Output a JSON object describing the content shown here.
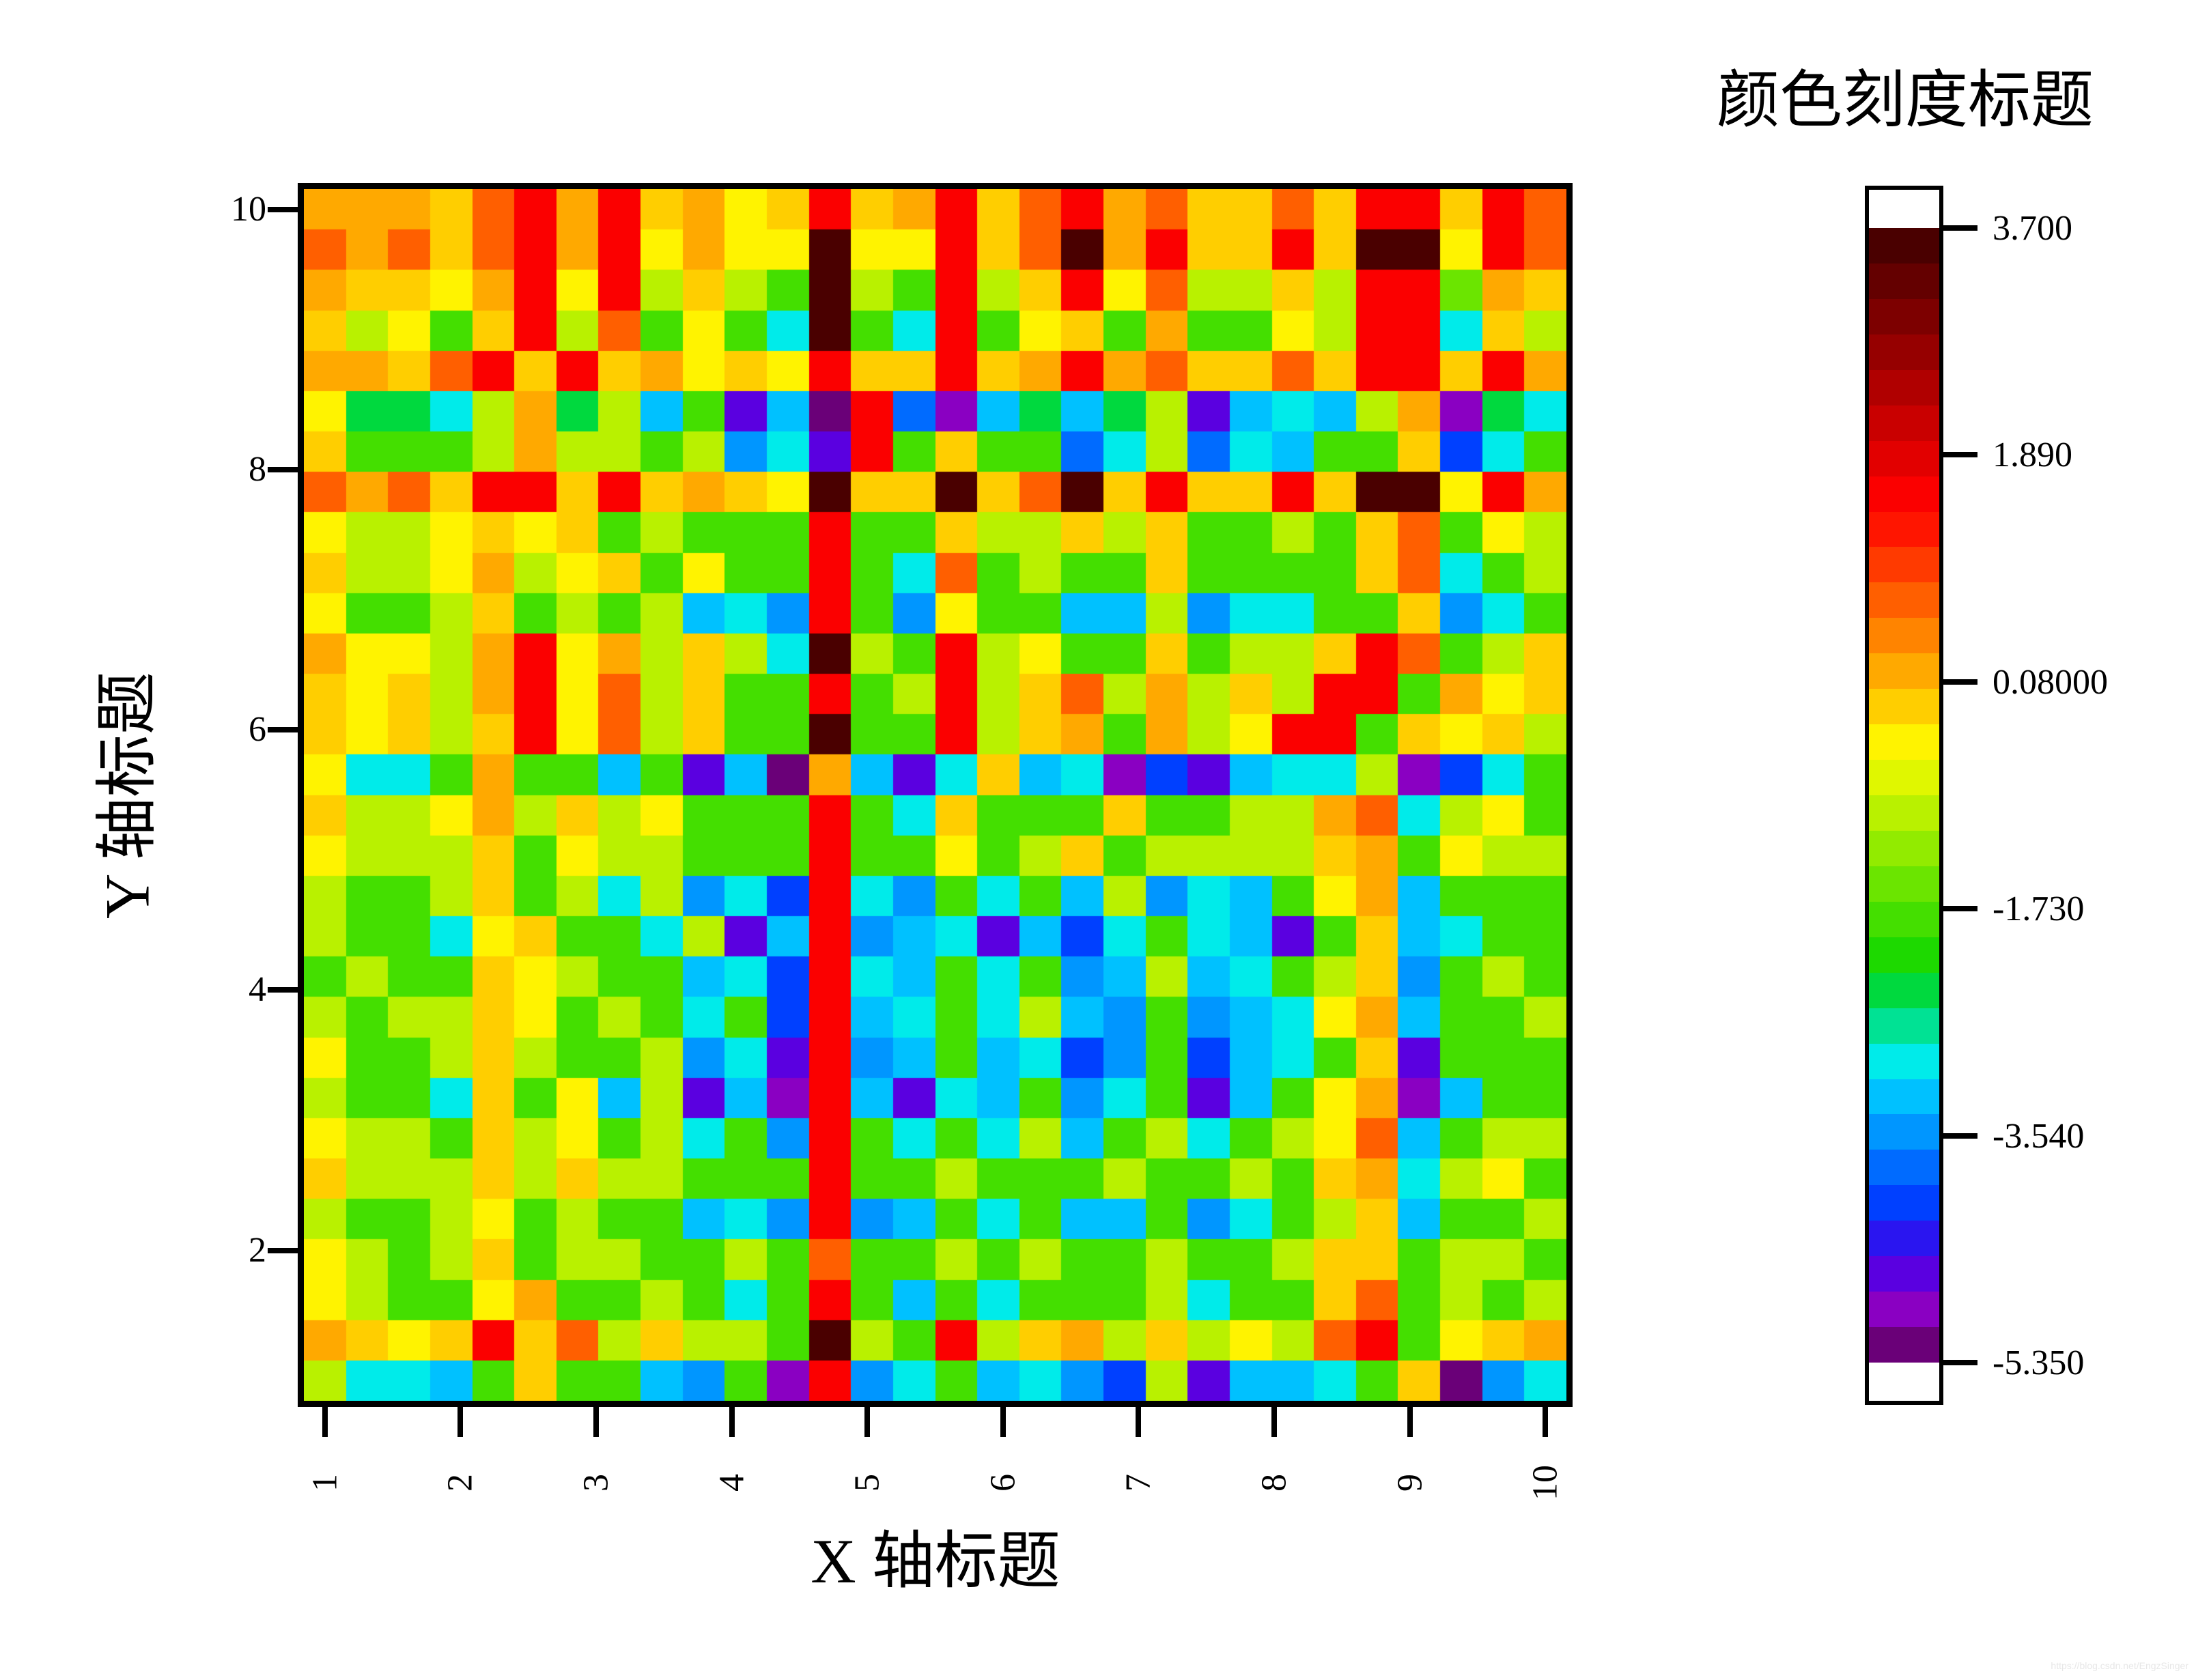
{
  "page": {
    "background": "#ffffff",
    "watermark": "https://blog.csdn.net/EngzSinger"
  },
  "chart_data": {
    "type": "heatmap",
    "title": "",
    "xlabel": "X 轴标题",
    "ylabel": "Y 轴标题",
    "colorbar_title": "颜色刻度标题",
    "x_range": [
      1,
      10
    ],
    "y_range": [
      1,
      10
    ],
    "x_ticks": [
      {
        "value": 1,
        "label": "1"
      },
      {
        "value": 2,
        "label": "2"
      },
      {
        "value": 3,
        "label": "3"
      },
      {
        "value": 4,
        "label": "4"
      },
      {
        "value": 5,
        "label": "5"
      },
      {
        "value": 6,
        "label": "6"
      },
      {
        "value": 7,
        "label": "7"
      },
      {
        "value": 8,
        "label": "8"
      },
      {
        "value": 9,
        "label": "9"
      },
      {
        "value": 10,
        "label": "10"
      }
    ],
    "y_ticks": [
      {
        "value": 10,
        "label": "10"
      },
      {
        "value": 8,
        "label": "8"
      },
      {
        "value": 6,
        "label": "6"
      },
      {
        "value": 4,
        "label": "4"
      },
      {
        "value": 2,
        "label": "2"
      }
    ],
    "grid": {
      "rows": 30,
      "cols": 30
    },
    "value_range": [
      -5.35,
      3.7
    ],
    "colorbar_ticks": [
      {
        "value": 3.7,
        "label": "3.700"
      },
      {
        "value": 1.89,
        "label": "1.890"
      },
      {
        "value": 0.08,
        "label": "0.08000"
      },
      {
        "value": -1.73,
        "label": "-1.730"
      },
      {
        "value": -3.54,
        "label": "-3.540"
      },
      {
        "value": -5.35,
        "label": "-5.350"
      }
    ],
    "colorbar_cap_color": "#ffffff",
    "colormap": [
      "#4a0000",
      "#640000",
      "#7d0000",
      "#960000",
      "#b00000",
      "#c90000",
      "#e20000",
      "#fb0000",
      "#ff1500",
      "#ff3a00",
      "#ff5f00",
      "#ff8400",
      "#ffa900",
      "#ffce00",
      "#fff300",
      "#e0f700",
      "#b9f100",
      "#92eb00",
      "#6be500",
      "#44df00",
      "#1dd900",
      "#00d93e",
      "#00e294",
      "#00ebea",
      "#00c1ff",
      "#0096ff",
      "#006bff",
      "#0040ff",
      "#2a15f0",
      "#5a00e0",
      "#8a00c2",
      "#6a0078"
    ],
    "values": [
      [
        0.25,
        0.25,
        0.25,
        -0.15,
        0.75,
        1.55,
        0.25,
        1.55,
        -0.15,
        0.25,
        -0.5,
        -0.15,
        1.55,
        -0.15,
        0.25,
        1.55,
        -0.15,
        0.75,
        1.55,
        0.25,
        0.75,
        -0.15,
        -0.15,
        0.75,
        -0.15,
        1.55,
        1.55,
        -0.15,
        1.55,
        0.75
      ],
      [
        0.75,
        0.25,
        0.75,
        -0.15,
        0.75,
        1.55,
        0.25,
        1.55,
        -0.5,
        0.25,
        -0.5,
        -0.5,
        3.45,
        -0.5,
        -0.5,
        1.55,
        -0.15,
        0.75,
        3.45,
        0.25,
        1.55,
        -0.15,
        -0.15,
        1.55,
        -0.15,
        3.45,
        3.45,
        -0.5,
        1.55,
        0.75
      ],
      [
        0.25,
        -0.15,
        -0.15,
        -0.5,
        0.25,
        1.55,
        -0.5,
        1.55,
        -1.05,
        -0.15,
        -1.05,
        -1.85,
        3.45,
        -1.05,
        -1.85,
        1.55,
        -1.05,
        -0.15,
        1.55,
        -0.5,
        0.75,
        -1.05,
        -1.05,
        -0.15,
        -1.05,
        1.55,
        1.55,
        -1.45,
        0.25,
        -0.15
      ],
      [
        -0.15,
        -1.05,
        -0.5,
        -1.85,
        -0.15,
        1.55,
        -1.05,
        0.75,
        -1.85,
        -0.5,
        -1.85,
        -2.95,
        3.45,
        -1.85,
        -2.95,
        1.55,
        -1.85,
        -0.5,
        -0.15,
        -1.85,
        0.25,
        -1.85,
        -1.85,
        -0.5,
        -1.05,
        1.55,
        1.55,
        -2.95,
        -0.15,
        -1.05
      ],
      [
        0.25,
        0.25,
        -0.15,
        0.75,
        1.55,
        -0.15,
        1.55,
        -0.15,
        0.25,
        -0.5,
        -0.15,
        -0.5,
        1.55,
        -0.15,
        -0.15,
        1.55,
        -0.15,
        0.25,
        1.55,
        0.25,
        0.75,
        -0.15,
        -0.15,
        0.75,
        -0.15,
        1.55,
        1.55,
        -0.15,
        1.55,
        0.25
      ],
      [
        -0.5,
        -2.25,
        -2.25,
        -2.95,
        -1.05,
        0.25,
        -2.25,
        -1.05,
        -3.25,
        -1.85,
        -4.6,
        -3.25,
        -5.3,
        1.55,
        -3.85,
        -4.95,
        -3.25,
        -2.25,
        -3.25,
        -2.25,
        -1.05,
        -4.6,
        -3.25,
        -2.95,
        -3.25,
        -1.05,
        0.25,
        -4.95,
        -2.25,
        -2.95
      ],
      [
        -0.15,
        -1.85,
        -1.85,
        -1.85,
        -1.05,
        0.25,
        -1.05,
        -1.05,
        -1.85,
        -1.05,
        -3.55,
        -2.95,
        -4.6,
        1.55,
        -1.85,
        -0.15,
        -1.85,
        -1.85,
        -3.85,
        -2.95,
        -1.05,
        -3.85,
        -2.95,
        -3.25,
        -1.85,
        -1.85,
        -0.15,
        -4.15,
        -2.95,
        -1.85
      ],
      [
        0.75,
        0.25,
        0.75,
        -0.15,
        1.55,
        1.55,
        -0.15,
        1.55,
        -0.15,
        0.25,
        -0.15,
        -0.5,
        3.45,
        -0.15,
        -0.15,
        3.45,
        -0.15,
        0.75,
        3.45,
        -0.15,
        1.55,
        -0.15,
        -0.15,
        1.55,
        -0.15,
        3.45,
        3.45,
        -0.5,
        1.55,
        0.25
      ],
      [
        -0.5,
        -1.05,
        -1.05,
        -0.5,
        -0.15,
        -0.5,
        -0.15,
        -1.85,
        -1.05,
        -1.85,
        -1.85,
        -1.85,
        1.55,
        -1.85,
        -1.85,
        -0.15,
        -1.05,
        -1.05,
        -0.15,
        -1.05,
        -0.15,
        -1.85,
        -1.85,
        -1.05,
        -1.85,
        -0.15,
        0.75,
        -1.85,
        -0.5,
        -1.05
      ],
      [
        -0.15,
        -1.05,
        -1.05,
        -0.5,
        0.25,
        -1.05,
        -0.5,
        -0.15,
        -1.85,
        -0.5,
        -1.85,
        -1.85,
        1.55,
        -1.85,
        -2.95,
        0.75,
        -1.85,
        -1.05,
        -1.85,
        -1.85,
        -0.15,
        -1.85,
        -1.85,
        -1.85,
        -1.85,
        -0.15,
        0.75,
        -2.95,
        -1.85,
        -1.05
      ],
      [
        -0.5,
        -1.85,
        -1.85,
        -1.05,
        -0.15,
        -1.85,
        -1.05,
        -1.85,
        -1.05,
        -3.25,
        -2.95,
        -3.55,
        1.55,
        -1.85,
        -3.55,
        -0.5,
        -1.85,
        -1.85,
        -3.25,
        -3.25,
        -1.05,
        -3.55,
        -2.95,
        -2.95,
        -1.85,
        -1.85,
        -0.15,
        -3.55,
        -2.95,
        -1.85
      ],
      [
        0.25,
        -0.5,
        -0.5,
        -1.05,
        0.25,
        1.55,
        -0.5,
        0.25,
        -1.05,
        -0.15,
        -1.05,
        -2.95,
        3.45,
        -1.05,
        -1.85,
        1.55,
        -1.05,
        -0.5,
        -1.85,
        -1.85,
        -0.15,
        -1.85,
        -1.05,
        -1.05,
        -0.15,
        1.55,
        0.75,
        -1.85,
        -1.05,
        -0.15
      ],
      [
        -0.15,
        -0.5,
        -0.15,
        -1.05,
        0.25,
        1.55,
        -0.5,
        0.75,
        -1.05,
        -0.15,
        -1.85,
        -1.85,
        1.55,
        -1.85,
        -1.05,
        1.55,
        -1.05,
        -0.15,
        0.75,
        -1.05,
        0.25,
        -1.05,
        -0.15,
        -1.05,
        1.55,
        1.55,
        -1.85,
        0.25,
        -0.5,
        -0.15
      ],
      [
        -0.15,
        -0.5,
        -0.15,
        -1.05,
        -0.15,
        1.55,
        -0.5,
        0.75,
        -1.05,
        -0.15,
        -1.85,
        -1.85,
        3.45,
        -1.85,
        -1.85,
        1.55,
        -1.05,
        -0.15,
        0.25,
        -1.85,
        0.25,
        -1.05,
        -0.5,
        1.55,
        1.55,
        -1.85,
        -0.15,
        -0.5,
        -0.15,
        -1.05
      ],
      [
        -0.5,
        -2.95,
        -2.95,
        -1.85,
        0.25,
        -1.85,
        -1.85,
        -3.25,
        -1.85,
        -4.6,
        -3.25,
        -5.3,
        0.25,
        -3.25,
        -4.6,
        -2.95,
        -0.15,
        -3.25,
        -2.95,
        -4.95,
        -4.15,
        -4.6,
        -3.25,
        -2.95,
        -2.95,
        -1.05,
        -4.95,
        -4.15,
        -2.95,
        -1.85
      ],
      [
        -0.15,
        -1.05,
        -1.05,
        -0.5,
        0.25,
        -1.05,
        -0.15,
        -1.05,
        -0.5,
        -1.85,
        -1.85,
        -1.85,
        1.55,
        -1.85,
        -2.95,
        -0.15,
        -1.85,
        -1.85,
        -1.85,
        -0.15,
        -1.85,
        -1.85,
        -1.05,
        -1.05,
        0.25,
        0.75,
        -2.95,
        -1.05,
        -0.5,
        -1.85
      ],
      [
        -0.5,
        -1.05,
        -1.05,
        -1.05,
        -0.15,
        -1.85,
        -0.5,
        -1.05,
        -1.05,
        -1.85,
        -1.85,
        -1.85,
        1.55,
        -1.85,
        -1.85,
        -0.5,
        -1.85,
        -1.05,
        -0.15,
        -1.85,
        -1.05,
        -1.05,
        -1.05,
        -1.05,
        -0.15,
        0.25,
        -1.85,
        -0.5,
        -1.05,
        -1.05
      ],
      [
        -1.05,
        -1.85,
        -1.85,
        -1.05,
        -0.15,
        -1.85,
        -1.05,
        -2.95,
        -1.05,
        -3.55,
        -2.95,
        -4.15,
        1.55,
        -2.95,
        -3.55,
        -1.85,
        -2.95,
        -1.85,
        -3.25,
        -1.05,
        -3.55,
        -2.95,
        -3.25,
        -1.85,
        -0.5,
        0.25,
        -3.25,
        -1.85,
        -1.85,
        -1.85
      ],
      [
        -1.05,
        -1.85,
        -1.85,
        -2.95,
        -0.5,
        -0.15,
        -1.85,
        -1.85,
        -2.95,
        -1.05,
        -4.6,
        -3.25,
        1.55,
        -3.55,
        -3.25,
        -2.95,
        -4.6,
        -3.25,
        -4.15,
        -2.95,
        -1.85,
        -2.95,
        -3.25,
        -4.6,
        -1.85,
        -0.15,
        -3.25,
        -2.95,
        -1.85,
        -1.85
      ],
      [
        -1.85,
        -1.05,
        -1.85,
        -1.85,
        -0.15,
        -0.5,
        -1.05,
        -1.85,
        -1.85,
        -3.25,
        -2.95,
        -4.15,
        1.55,
        -2.95,
        -3.25,
        -1.85,
        -2.95,
        -1.85,
        -3.55,
        -3.25,
        -1.05,
        -3.25,
        -2.95,
        -1.85,
        -1.05,
        -0.15,
        -3.55,
        -1.85,
        -1.05,
        -1.85
      ],
      [
        -1.05,
        -1.85,
        -1.05,
        -1.05,
        -0.15,
        -0.5,
        -1.85,
        -1.05,
        -1.85,
        -2.95,
        -1.85,
        -4.15,
        1.55,
        -3.25,
        -2.95,
        -1.85,
        -2.95,
        -1.05,
        -3.25,
        -3.55,
        -1.85,
        -3.55,
        -3.25,
        -2.95,
        -0.5,
        0.25,
        -3.25,
        -1.85,
        -1.85,
        -1.05
      ],
      [
        -0.5,
        -1.85,
        -1.85,
        -1.05,
        -0.15,
        -1.05,
        -1.85,
        -1.85,
        -1.05,
        -3.55,
        -2.95,
        -4.6,
        1.55,
        -3.55,
        -3.25,
        -1.85,
        -3.25,
        -2.95,
        -4.15,
        -3.55,
        -1.85,
        -4.15,
        -3.25,
        -2.95,
        -1.85,
        -0.15,
        -4.6,
        -1.85,
        -1.85,
        -1.85
      ],
      [
        -1.05,
        -1.85,
        -1.85,
        -2.95,
        -0.15,
        -1.85,
        -0.5,
        -3.25,
        -1.05,
        -4.6,
        -3.25,
        -4.95,
        1.55,
        -3.25,
        -4.6,
        -2.95,
        -3.25,
        -1.85,
        -3.55,
        -2.95,
        -1.85,
        -4.6,
        -3.25,
        -1.85,
        -0.5,
        0.25,
        -4.95,
        -3.25,
        -1.85,
        -1.85
      ],
      [
        -0.5,
        -1.05,
        -1.05,
        -1.85,
        -0.15,
        -1.05,
        -0.5,
        -1.85,
        -1.05,
        -2.95,
        -1.85,
        -3.55,
        1.55,
        -1.85,
        -2.95,
        -1.85,
        -2.95,
        -1.05,
        -3.25,
        -1.85,
        -1.05,
        -2.95,
        -1.85,
        -1.05,
        -0.5,
        0.75,
        -3.25,
        -1.85,
        -1.05,
        -1.05
      ],
      [
        -0.15,
        -1.05,
        -1.05,
        -1.05,
        -0.15,
        -1.05,
        -0.15,
        -1.05,
        -1.05,
        -1.85,
        -1.85,
        -1.85,
        1.55,
        -1.85,
        -1.85,
        -1.05,
        -1.85,
        -1.85,
        -1.85,
        -1.05,
        -1.85,
        -1.85,
        -1.05,
        -1.85,
        -0.15,
        0.25,
        -2.95,
        -1.05,
        -0.5,
        -1.85
      ],
      [
        -1.05,
        -1.85,
        -1.85,
        -1.05,
        -0.5,
        -1.85,
        -1.05,
        -1.85,
        -1.85,
        -3.25,
        -2.95,
        -3.55,
        1.55,
        -3.55,
        -3.25,
        -1.85,
        -2.95,
        -1.85,
        -3.25,
        -3.25,
        -1.85,
        -3.55,
        -2.95,
        -1.85,
        -1.05,
        -0.15,
        -3.25,
        -1.85,
        -1.85,
        -1.05
      ],
      [
        -0.5,
        -1.05,
        -1.85,
        -1.05,
        -0.15,
        -1.85,
        -1.05,
        -1.05,
        -1.85,
        -1.85,
        -1.05,
        -1.85,
        0.75,
        -1.85,
        -1.85,
        -1.05,
        -1.85,
        -1.05,
        -1.85,
        -1.85,
        -1.05,
        -1.85,
        -1.85,
        -1.05,
        -0.15,
        -0.15,
        -1.85,
        -1.05,
        -1.05,
        -1.85
      ],
      [
        -0.5,
        -1.05,
        -1.85,
        -1.85,
        -0.5,
        0.25,
        -1.85,
        -1.85,
        -1.05,
        -1.85,
        -2.95,
        -1.85,
        1.55,
        -1.85,
        -3.25,
        -1.85,
        -2.95,
        -1.85,
        -1.85,
        -1.85,
        -1.05,
        -2.95,
        -1.85,
        -1.85,
        -0.15,
        0.75,
        -1.85,
        -1.05,
        -1.85,
        -1.05
      ],
      [
        0.25,
        -0.15,
        -0.5,
        -0.15,
        1.55,
        -0.15,
        0.75,
        -1.05,
        -0.15,
        -1.05,
        -1.05,
        -1.85,
        3.45,
        -1.05,
        -1.85,
        1.55,
        -1.05,
        -0.15,
        0.25,
        -1.05,
        -0.15,
        -1.05,
        -0.5,
        -1.05,
        0.75,
        1.55,
        -1.85,
        -0.5,
        -0.15,
        0.25
      ],
      [
        -1.05,
        -2.95,
        -2.95,
        -3.25,
        -1.85,
        -0.15,
        -1.85,
        -1.85,
        -3.25,
        -3.55,
        -1.85,
        -4.95,
        1.55,
        -3.55,
        -2.95,
        -1.85,
        -3.25,
        -2.95,
        -3.55,
        -4.15,
        -1.05,
        -4.6,
        -3.25,
        -3.25,
        -2.95,
        -1.85,
        -0.15,
        -5.3,
        -3.55,
        -2.95
      ]
    ]
  }
}
